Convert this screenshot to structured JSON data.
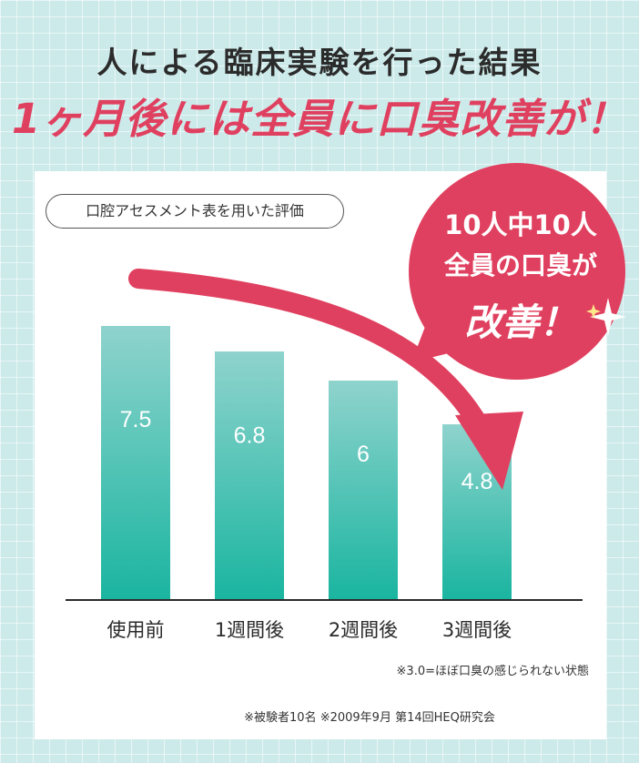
{
  "header": {
    "line1": "人による臨床実験を行った結果",
    "line2": "1ヶ月後には全員に口臭改善が！"
  },
  "pill_label": "口腔アセスメント表を用いた評価",
  "callout": {
    "line1": "10人中10人",
    "line2": "全員の口臭が",
    "line3": "改善！"
  },
  "note": "※3.0=ほぼ口臭の感じられない状態",
  "footnote": "※被験者10名 ※2009年9月 第14回HEQ研究会",
  "colors": {
    "headline_accent": "#e0405f",
    "bar_top": "#8fd3cd",
    "bar_bottom": "#1ab5a0",
    "arrow": "#e0405f",
    "background": "#cdeaea"
  },
  "chart_data": {
    "type": "bar",
    "title": "",
    "xlabel": "",
    "ylabel": "",
    "categories": [
      "使用前",
      "1週間後",
      "2週間後",
      "3週間後"
    ],
    "values": [
      7.5,
      6.8,
      6,
      4.8
    ],
    "value_labels": [
      "7.5",
      "6.8",
      "6",
      "4.8"
    ],
    "ylim": [
      0,
      9
    ],
    "grid": false,
    "legend": "none"
  }
}
